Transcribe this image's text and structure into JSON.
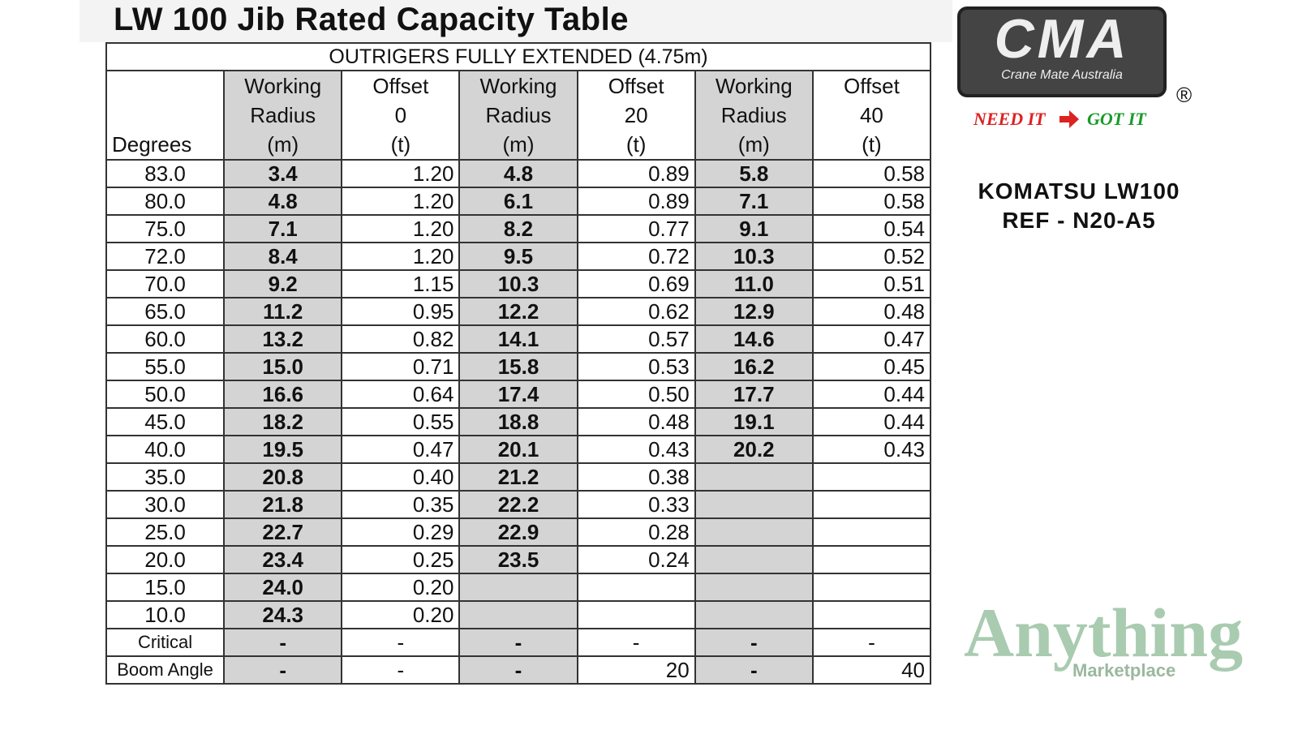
{
  "header": {
    "title": "LW 100 Jib Rated Capacity Table"
  },
  "table": {
    "caption": "OUTRIGERS FULLY EXTENDED (4.75m)",
    "columns": [
      [
        "Degrees"
      ],
      [
        "Working",
        "Radius",
        "(m)"
      ],
      [
        "Offset",
        "0",
        "(t)"
      ],
      [
        "Working",
        "Radius",
        "(m)"
      ],
      [
        "Offset",
        "20",
        "(t)"
      ],
      [
        "Working",
        "Radius",
        "(m)"
      ],
      [
        "Offset",
        "40",
        "(t)"
      ]
    ],
    "rows": [
      [
        "83.0",
        "3.4",
        "1.20",
        "4.8",
        "0.89",
        "5.8",
        "0.58"
      ],
      [
        "80.0",
        "4.8",
        "1.20",
        "6.1",
        "0.89",
        "7.1",
        "0.58"
      ],
      [
        "75.0",
        "7.1",
        "1.20",
        "8.2",
        "0.77",
        "9.1",
        "0.54"
      ],
      [
        "72.0",
        "8.4",
        "1.20",
        "9.5",
        "0.72",
        "10.3",
        "0.52"
      ],
      [
        "70.0",
        "9.2",
        "1.15",
        "10.3",
        "0.69",
        "11.0",
        "0.51"
      ],
      [
        "65.0",
        "11.2",
        "0.95",
        "12.2",
        "0.62",
        "12.9",
        "0.48"
      ],
      [
        "60.0",
        "13.2",
        "0.82",
        "14.1",
        "0.57",
        "14.6",
        "0.47"
      ],
      [
        "55.0",
        "15.0",
        "0.71",
        "15.8",
        "0.53",
        "16.2",
        "0.45"
      ],
      [
        "50.0",
        "16.6",
        "0.64",
        "17.4",
        "0.50",
        "17.7",
        "0.44"
      ],
      [
        "45.0",
        "18.2",
        "0.55",
        "18.8",
        "0.48",
        "19.1",
        "0.44"
      ],
      [
        "40.0",
        "19.5",
        "0.47",
        "20.1",
        "0.43",
        "20.2",
        "0.43"
      ],
      [
        "35.0",
        "20.8",
        "0.40",
        "21.2",
        "0.38"
      ],
      [
        "30.0",
        "21.8",
        "0.35",
        "22.2",
        "0.33"
      ],
      [
        "25.0",
        "22.7",
        "0.29",
        "22.9",
        "0.28"
      ],
      [
        "20.0",
        "23.4",
        "0.25",
        "23.5",
        "0.24"
      ],
      [
        "15.0",
        "24.0",
        "0.20"
      ],
      [
        "10.0",
        "24.3",
        "0.20"
      ],
      [
        "Critical",
        "-",
        "-",
        "-",
        "-",
        "-",
        "-"
      ],
      [
        "Boom Angle",
        "-",
        "-",
        "-",
        "20",
        "-",
        "40"
      ]
    ]
  },
  "sidebar": {
    "logo": "CMA",
    "logo_subtitle": "Crane Mate Australia",
    "registered": "®",
    "slogan_left": "NEED IT",
    "slogan_right": "GOT IT",
    "model": "KOMATSU LW100",
    "reference": "REF - N20-A5"
  },
  "watermark": {
    "brand": "Anything",
    "sub": "Marketplace"
  }
}
